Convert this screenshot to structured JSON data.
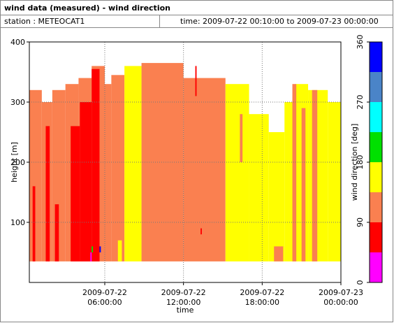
{
  "chart_data": {
    "type": "heatmap",
    "title": "wind data (measured) - wind direction",
    "station": "station : METEOCAT1",
    "period": "time: 2009-07-22 00:10:00 to 2009-07-23 00:00:00",
    "x_label": "time",
    "y_label": "height [m]",
    "colorbar_label": "wind direction [deg]",
    "xlim": [
      0.25,
      24
    ],
    "ylim": [
      0,
      400
    ],
    "xticks": [
      {
        "value": 6,
        "label": "2009-07-22 06:00:00"
      },
      {
        "value": 12,
        "label": "2009-07-22 12:00:00"
      },
      {
        "value": 18,
        "label": "2009-07-22 18:00:00"
      },
      {
        "value": 24,
        "label": "2009-07-23 00:00:00"
      }
    ],
    "yticks": [
      100,
      200,
      300,
      400
    ],
    "grid": true,
    "colorbar": {
      "lim": [
        0,
        360
      ],
      "ticks": [
        0,
        90,
        180,
        270,
        360
      ],
      "bins": [
        0,
        45,
        90,
        135,
        180,
        225,
        270,
        315,
        360
      ],
      "colors": [
        "#ff00ff",
        "#ff0000",
        "#fa8050",
        "#ffff00",
        "#00e000",
        "#00ffff",
        "#4a84c8",
        "#0000ff"
      ]
    },
    "segments": [
      {
        "t": [
          0.25,
          1.2
        ],
        "h": [
          35,
          320
        ],
        "dir": 120
      },
      {
        "t": [
          1.2,
          2.0
        ],
        "h": [
          35,
          300
        ],
        "dir": 120
      },
      {
        "t": [
          2.0,
          3.0
        ],
        "h": [
          35,
          320
        ],
        "dir": 120
      },
      {
        "t": [
          3.0,
          4.0
        ],
        "h": [
          35,
          330
        ],
        "dir": 120
      },
      {
        "t": [
          4.0,
          5.0
        ],
        "h": [
          35,
          340
        ],
        "dir": 120
      },
      {
        "t": [
          5.0,
          6.0
        ],
        "h": [
          35,
          360
        ],
        "dir": 120
      },
      {
        "t": [
          6.0,
          6.5
        ],
        "h": [
          35,
          330
        ],
        "dir": 120
      },
      {
        "t": [
          6.5,
          7.5
        ],
        "h": [
          35,
          345
        ],
        "dir": 120
      },
      {
        "t": [
          7.5,
          8.8
        ],
        "h": [
          35,
          360
        ],
        "dir": 170
      },
      {
        "t": [
          8.8,
          12.0
        ],
        "h": [
          35,
          365
        ],
        "dir": 120
      },
      {
        "t": [
          12.0,
          15.2
        ],
        "h": [
          35,
          340
        ],
        "dir": 120
      },
      {
        "t": [
          15.2,
          17.0
        ],
        "h": [
          35,
          330
        ],
        "dir": 170
      },
      {
        "t": [
          17.0,
          18.5
        ],
        "h": [
          35,
          280
        ],
        "dir": 170
      },
      {
        "t": [
          18.5,
          19.7
        ],
        "h": [
          35,
          250
        ],
        "dir": 170
      },
      {
        "t": [
          19.7,
          20.5
        ],
        "h": [
          35,
          300
        ],
        "dir": 170
      },
      {
        "t": [
          20.5,
          21.5
        ],
        "h": [
          35,
          330
        ],
        "dir": 170
      },
      {
        "t": [
          21.5,
          23.0
        ],
        "h": [
          35,
          320
        ],
        "dir": 170
      },
      {
        "t": [
          23.0,
          24
        ],
        "h": [
          35,
          300
        ],
        "dir": 170
      },
      {
        "t": [
          20.3,
          20.6
        ],
        "h": [
          35,
          330
        ],
        "dir": 120
      },
      {
        "t": [
          21.8,
          22.2
        ],
        "h": [
          35,
          320
        ],
        "dir": 120
      },
      {
        "t": [
          21.0,
          21.3
        ],
        "h": [
          35,
          290
        ],
        "dir": 120
      },
      {
        "t": [
          18.9,
          19.6
        ],
        "h": [
          35,
          60
        ],
        "dir": 120
      },
      {
        "t": [
          16.3,
          16.5
        ],
        "h": [
          200,
          280
        ],
        "dir": 120
      },
      {
        "t": [
          7.0,
          7.3
        ],
        "h": [
          35,
          70
        ],
        "dir": 170
      },
      {
        "t": [
          0.5,
          0.7
        ],
        "h": [
          35,
          160
        ],
        "dir": 60
      },
      {
        "t": [
          1.5,
          1.8
        ],
        "h": [
          35,
          260
        ],
        "dir": 60
      },
      {
        "t": [
          2.2,
          2.5
        ],
        "h": [
          35,
          130
        ],
        "dir": 60
      },
      {
        "t": [
          3.4,
          4.1
        ],
        "h": [
          35,
          260
        ],
        "dir": 60
      },
      {
        "t": [
          4.1,
          5.0
        ],
        "h": [
          35,
          300
        ],
        "dir": 60
      },
      {
        "t": [
          5.0,
          5.6
        ],
        "h": [
          35,
          355
        ],
        "dir": 60
      },
      {
        "t": [
          13.3,
          13.4
        ],
        "h": [
          80,
          90
        ],
        "dir": 60
      },
      {
        "t": [
          12.9,
          13.0
        ],
        "h": [
          310,
          360
        ],
        "dir": 60
      },
      {
        "t": [
          4.9,
          5.0
        ],
        "h": [
          35,
          50
        ],
        "dir": 20
      },
      {
        "t": [
          5.0,
          5.1
        ],
        "h": [
          50,
          60
        ],
        "dir": 200
      },
      {
        "t": [
          5.6,
          5.7
        ],
        "h": [
          50,
          60
        ],
        "dir": 340
      }
    ]
  }
}
